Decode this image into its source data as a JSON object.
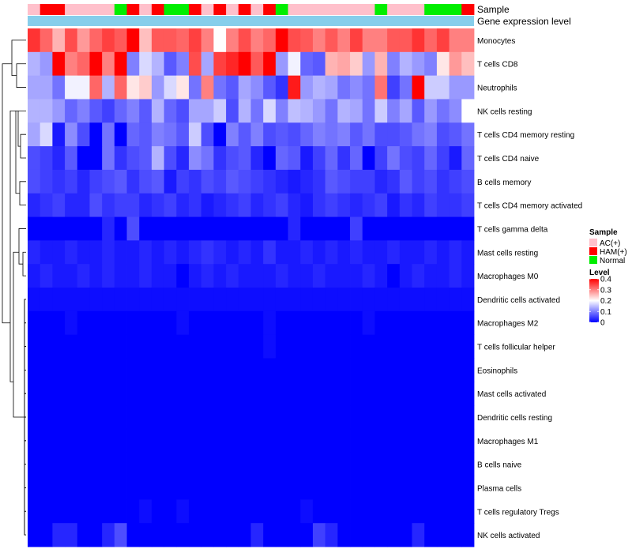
{
  "chart_data": {
    "type": "heatmap",
    "title": "",
    "annotation_labels": [
      "Sample",
      "Gene expression level"
    ],
    "row_labels": [
      "Monocytes",
      "T cells CD8",
      "Neutrophils",
      "NK cells resting",
      "T cells CD4 memory resting",
      "T cells CD4 naive",
      "B cells memory",
      "T cells CD4 memory activated",
      "T cells gamma delta",
      "Mast cells resting",
      "Macrophages M0",
      "Dendritic cells activated",
      "Macrophages M2",
      "T cells follicular helper",
      "Eosinophils",
      "Mast cells activated",
      "Dendritic cells resting",
      "Macrophages M1",
      "B cells naive",
      "Plasma cells",
      "T cells regulatory  Tregs",
      "NK cells activated"
    ],
    "sample_groups": [
      0,
      1,
      1,
      0,
      0,
      0,
      0,
      2,
      1,
      0,
      1,
      2,
      2,
      1,
      0,
      1,
      0,
      1,
      0,
      1,
      2,
      0,
      0,
      0,
      0,
      0,
      0,
      0,
      2,
      0,
      0,
      0,
      2,
      2,
      2,
      1
    ],
    "values": [
      [
        0.36,
        0.32,
        0.26,
        0.34,
        0.28,
        0.32,
        0.35,
        0.33,
        0.4,
        0.25,
        0.33,
        0.33,
        0.32,
        0.35,
        0.3,
        0.2,
        0.3,
        0.34,
        0.3,
        0.32,
        0.4,
        0.34,
        0.33,
        0.3,
        0.33,
        0.3,
        0.35,
        0.3,
        0.3,
        0.33,
        0.33,
        0.36,
        0.32,
        0.35,
        0.3,
        0.3
      ],
      [
        0.14,
        0.12,
        0.4,
        0.3,
        0.32,
        0.4,
        0.3,
        0.4,
        0.1,
        0.17,
        0.14,
        0.07,
        0.1,
        0.34,
        0.13,
        0.35,
        0.37,
        0.4,
        0.33,
        0.4,
        0.12,
        0.19,
        0.08,
        0.07,
        0.26,
        0.27,
        0.24,
        0.12,
        0.26,
        0.1,
        0.14,
        0.12,
        0.1,
        0.22,
        0.28,
        0.25
      ],
      [
        0.13,
        0.13,
        0.09,
        0.19,
        0.19,
        0.32,
        0.14,
        0.32,
        0.22,
        0.24,
        0.12,
        0.17,
        0.22,
        0.09,
        0.3,
        0.09,
        0.07,
        0.13,
        0.11,
        0.07,
        0.04,
        0.38,
        0.12,
        0.14,
        0.13,
        0.09,
        0.11,
        0.09,
        0.31,
        0.05,
        0.09,
        0.4,
        0.16,
        0.16,
        0.12,
        0.12
      ],
      [
        0.14,
        0.14,
        0.12,
        0.08,
        0.1,
        0.07,
        0.05,
        0.08,
        0.1,
        0.07,
        0.14,
        0.08,
        0.06,
        0.13,
        0.13,
        0.16,
        0.06,
        0.14,
        0.09,
        0.17,
        0.1,
        0.15,
        0.14,
        0.12,
        0.09,
        0.14,
        0.13,
        0.09,
        0.16,
        0.1,
        0.13,
        0.07,
        0.12,
        0.09,
        0.11,
        0.2
      ],
      [
        0.13,
        0.17,
        0.02,
        0.11,
        0.06,
        0.0,
        0.09,
        0.0,
        0.08,
        0.07,
        0.1,
        0.09,
        0.07,
        0.16,
        0.06,
        0.0,
        0.1,
        0.07,
        0.1,
        0.06,
        0.07,
        0.06,
        0.08,
        0.1,
        0.09,
        0.1,
        0.07,
        0.09,
        0.06,
        0.06,
        0.07,
        0.09,
        0.1,
        0.06,
        0.07,
        0.09
      ],
      [
        0.06,
        0.05,
        0.03,
        0.07,
        0.0,
        0.0,
        0.09,
        0.04,
        0.06,
        0.07,
        0.14,
        0.06,
        0.03,
        0.11,
        0.09,
        0.04,
        0.06,
        0.07,
        0.03,
        0.0,
        0.08,
        0.07,
        0.02,
        0.05,
        0.08,
        0.04,
        0.08,
        0.0,
        0.05,
        0.09,
        0.06,
        0.05,
        0.08,
        0.05,
        0.02,
        0.08
      ],
      [
        0.06,
        0.05,
        0.04,
        0.05,
        0.03,
        0.05,
        0.06,
        0.07,
        0.04,
        0.06,
        0.07,
        0.02,
        0.05,
        0.04,
        0.06,
        0.05,
        0.07,
        0.06,
        0.05,
        0.04,
        0.03,
        0.02,
        0.03,
        0.04,
        0.07,
        0.06,
        0.05,
        0.05,
        0.03,
        0.04,
        0.07,
        0.05,
        0.06,
        0.04,
        0.05,
        0.06
      ],
      [
        0.03,
        0.04,
        0.05,
        0.03,
        0.03,
        0.06,
        0.04,
        0.05,
        0.05,
        0.03,
        0.04,
        0.05,
        0.03,
        0.04,
        0.02,
        0.03,
        0.04,
        0.05,
        0.03,
        0.04,
        0.05,
        0.03,
        0.02,
        0.04,
        0.05,
        0.04,
        0.03,
        0.04,
        0.05,
        0.02,
        0.04,
        0.03,
        0.05,
        0.04,
        0.04,
        0.05
      ],
      [
        0.0,
        0.0,
        0.0,
        0.0,
        0.0,
        0.0,
        0.03,
        0.0,
        0.06,
        0.0,
        0.0,
        0.0,
        0.0,
        0.0,
        0.0,
        0.0,
        0.0,
        0.0,
        0.0,
        0.0,
        0.0,
        0.03,
        0.0,
        0.0,
        0.0,
        0.0,
        0.05,
        0.0,
        0.0,
        0.0,
        0.0,
        0.0,
        0.0,
        0.0,
        0.0,
        0.0
      ],
      [
        0.03,
        0.02,
        0.02,
        0.03,
        0.02,
        0.02,
        0.03,
        0.02,
        0.02,
        0.03,
        0.02,
        0.03,
        0.02,
        0.03,
        0.04,
        0.03,
        0.02,
        0.03,
        0.02,
        0.04,
        0.02,
        0.02,
        0.03,
        0.02,
        0.03,
        0.02,
        0.03,
        0.02,
        0.02,
        0.03,
        0.02,
        0.02,
        0.03,
        0.02,
        0.03,
        0.02
      ],
      [
        0.02,
        0.03,
        0.02,
        0.02,
        0.03,
        0.02,
        0.03,
        0.02,
        0.02,
        0.03,
        0.02,
        0.02,
        0.0,
        0.02,
        0.03,
        0.02,
        0.03,
        0.02,
        0.02,
        0.02,
        0.03,
        0.02,
        0.02,
        0.03,
        0.02,
        0.02,
        0.02,
        0.03,
        0.02,
        0.0,
        0.02,
        0.03,
        0.02,
        0.02,
        0.03,
        0.02
      ],
      [
        0.01,
        0.01,
        0.01,
        0.01,
        0.01,
        0.01,
        0.01,
        0.01,
        0.01,
        0.01,
        0.01,
        0.01,
        0.01,
        0.01,
        0.01,
        0.01,
        0.01,
        0.01,
        0.01,
        0.01,
        0.01,
        0.01,
        0.01,
        0.01,
        0.01,
        0.01,
        0.01,
        0.01,
        0.01,
        0.01,
        0.01,
        0.01,
        0.01,
        0.01,
        0.01,
        0.01
      ],
      [
        0.0,
        0.0,
        0.0,
        0.01,
        0.0,
        0.0,
        0.0,
        0.0,
        0.0,
        0.0,
        0.0,
        0.0,
        0.01,
        0.0,
        0.0,
        0.0,
        0.0,
        0.0,
        0.0,
        0.01,
        0.0,
        0.0,
        0.0,
        0.0,
        0.0,
        0.0,
        0.0,
        0.01,
        0.0,
        0.0,
        0.0,
        0.0,
        0.0,
        0.0,
        0.0,
        0.0
      ],
      [
        0.0,
        0.0,
        0.0,
        0.0,
        0.0,
        0.0,
        0.0,
        0.0,
        0.0,
        0.0,
        0.0,
        0.0,
        0.0,
        0.0,
        0.0,
        0.0,
        0.0,
        0.0,
        0.0,
        0.01,
        0.0,
        0.0,
        0.0,
        0.0,
        0.0,
        0.0,
        0.0,
        0.0,
        0.0,
        0.0,
        0.0,
        0.0,
        0.0,
        0.0,
        0.0,
        0.0
      ],
      [
        0,
        0,
        0,
        0,
        0,
        0,
        0,
        0,
        0,
        0,
        0,
        0,
        0,
        0,
        0,
        0,
        0,
        0,
        0,
        0,
        0,
        0,
        0,
        0,
        0,
        0,
        0,
        0,
        0,
        0,
        0,
        0,
        0,
        0,
        0,
        0
      ],
      [
        0,
        0,
        0,
        0,
        0,
        0,
        0,
        0,
        0,
        0,
        0,
        0,
        0,
        0,
        0,
        0,
        0,
        0,
        0,
        0,
        0,
        0,
        0,
        0,
        0,
        0,
        0,
        0,
        0,
        0,
        0,
        0,
        0,
        0,
        0,
        0
      ],
      [
        0,
        0,
        0,
        0,
        0,
        0,
        0,
        0,
        0,
        0,
        0,
        0,
        0,
        0,
        0,
        0,
        0,
        0,
        0,
        0,
        0,
        0,
        0,
        0,
        0,
        0,
        0,
        0,
        0,
        0,
        0,
        0,
        0,
        0,
        0,
        0
      ],
      [
        0,
        0,
        0,
        0,
        0,
        0,
        0,
        0,
        0,
        0,
        0,
        0,
        0,
        0,
        0,
        0,
        0,
        0,
        0,
        0,
        0,
        0,
        0,
        0,
        0,
        0,
        0,
        0,
        0,
        0,
        0,
        0,
        0,
        0,
        0,
        0
      ],
      [
        0,
        0,
        0,
        0,
        0,
        0,
        0,
        0,
        0,
        0,
        0,
        0,
        0,
        0,
        0,
        0,
        0,
        0,
        0,
        0,
        0,
        0,
        0,
        0,
        0,
        0,
        0,
        0,
        0,
        0,
        0,
        0,
        0,
        0,
        0,
        0
      ],
      [
        0,
        0,
        0,
        0,
        0,
        0,
        0,
        0,
        0,
        0,
        0,
        0,
        0,
        0,
        0,
        0,
        0,
        0,
        0,
        0,
        0,
        0,
        0,
        0,
        0,
        0,
        0,
        0,
        0,
        0,
        0,
        0,
        0,
        0,
        0,
        0
      ],
      [
        0.0,
        0.0,
        0.0,
        0.0,
        0.0,
        0.0,
        0.0,
        0.0,
        0.0,
        0.01,
        0.0,
        0.0,
        0.01,
        0.0,
        0.0,
        0.0,
        0.0,
        0.0,
        0.0,
        0.0,
        0.0,
        0.0,
        0.01,
        0.0,
        0.0,
        0.0,
        0.0,
        0.0,
        0.0,
        0.0,
        0.0,
        0.0,
        0.0,
        0.0,
        0.0,
        0.0
      ],
      [
        0.0,
        0.0,
        0.03,
        0.03,
        0.0,
        0.0,
        0.03,
        0.06,
        0.0,
        0.0,
        0.0,
        0.0,
        0.0,
        0.0,
        0.0,
        0.0,
        0.0,
        0.0,
        0.03,
        0.0,
        0.0,
        0.0,
        0.0,
        0.05,
        0.03,
        0.0,
        0.0,
        0.0,
        0.0,
        0.0,
        0.0,
        0.03,
        0.0,
        0.0,
        0.0,
        0.0
      ]
    ],
    "column_dendrogram": false,
    "legend_sample": {
      "title": "Sample",
      "entries": [
        {
          "label": "AC(+)",
          "color": "#ffc0cb"
        },
        {
          "label": "HAM(+)",
          "color": "#ff0000"
        },
        {
          "label": "Normal",
          "color": "#00ee00"
        }
      ]
    },
    "legend_level": {
      "title": "Level",
      "ticks": [
        "0.4",
        "0.3",
        "0.2",
        "0.1",
        "0"
      ],
      "tick_values": [
        0.4,
        0.3,
        0.2,
        0.1,
        0
      ],
      "range": [
        0,
        0.4
      ]
    },
    "colors": {
      "low": "#0000ff",
      "mid": "#ffffff",
      "high": "#ff0000",
      "gene_expression_bar": "#87ceeb"
    }
  }
}
